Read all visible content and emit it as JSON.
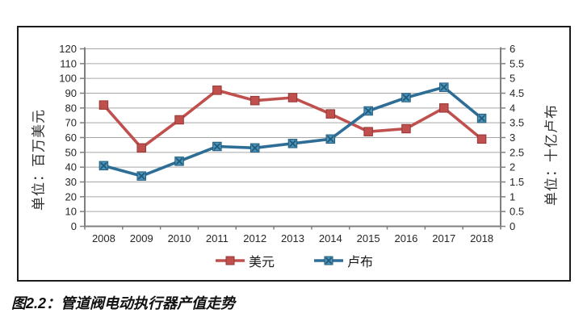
{
  "figure": {
    "caption": "图2.2：管道阀电动执行器产值走势"
  },
  "chart_data": {
    "type": "line",
    "title": "",
    "categories": [
      "2008",
      "2009",
      "2010",
      "2011",
      "2012",
      "2013",
      "2014",
      "2015",
      "2016",
      "2017",
      "2018"
    ],
    "series": [
      {
        "name": "美元",
        "axis": "left",
        "values": [
          82,
          53,
          72,
          92,
          85,
          87,
          76,
          64,
          66,
          80,
          59
        ],
        "color": "#C0504D",
        "marker": "square",
        "marker_fill": "#C0504D",
        "marker_stroke": "#943634"
      },
      {
        "name": "卢布",
        "axis": "right",
        "values": [
          2.05,
          1.7,
          2.2,
          2.7,
          2.65,
          2.8,
          2.95,
          3.9,
          4.35,
          4.7,
          3.65
        ],
        "color": "#2E6E96",
        "marker": "x-square",
        "marker_fill": "#4E93B9",
        "marker_stroke": "#1F5A7B"
      }
    ],
    "left_axis": {
      "title": "单位：百万美元",
      "min": 0,
      "max": 120,
      "step": 10,
      "ticks": [
        "0",
        "10",
        "20",
        "30",
        "40",
        "50",
        "60",
        "70",
        "80",
        "90",
        "100",
        "110",
        "120"
      ]
    },
    "right_axis": {
      "title": "单位：十亿卢布",
      "min": 0,
      "max": 6,
      "step": 0.5,
      "ticks": [
        "0",
        "0.5",
        "1",
        "1.5",
        "2",
        "2.5",
        "3",
        "3.5",
        "4",
        "4.5",
        "5",
        "5.5",
        "6"
      ]
    },
    "legend": {
      "position": "bottom"
    },
    "grid": true,
    "colors": {
      "background": "#FFFFFF",
      "border": "#1A1A1A",
      "gridline": "#A6A6A6",
      "axis_line": "#7F7F7F",
      "tick_label": "#262626"
    }
  }
}
